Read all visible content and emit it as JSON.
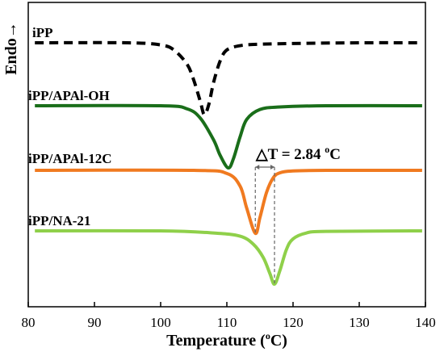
{
  "chart_data": {
    "type": "line",
    "xlabel": "Temperature (°C)",
    "xlabel_main": "Temperature (",
    "xlabel_sup": "o",
    "xlabel_tail": "C)",
    "ylabel": "Endo→",
    "xlim": [
      80,
      140
    ],
    "x_ticks": [
      80,
      90,
      100,
      110,
      120,
      130,
      140
    ],
    "x_tick_labels": [
      "80",
      "90",
      "100",
      "110",
      "120",
      "130",
      "140"
    ],
    "grid": false,
    "series": [
      {
        "name": "iPP",
        "color": "#000000",
        "style": "dashed",
        "peak_x": 106.6,
        "x": [
          81,
          95,
          100,
          102,
          104,
          105,
          106,
          106.6,
          107.3,
          108,
          109,
          110,
          112,
          115,
          120,
          130,
          139.5
        ],
        "y": [
          0,
          0,
          0.03,
          0.1,
          0.3,
          0.52,
          0.82,
          1.0,
          0.85,
          0.55,
          0.25,
          0.1,
          0.04,
          0.02,
          0.01,
          0,
          0
        ]
      },
      {
        "name": "iPP/APAl-OH",
        "color": "#1a6e1a",
        "style": "solid",
        "peak_x": 110.2,
        "x": [
          81,
          100,
          104,
          106,
          108,
          109,
          110.2,
          111,
          112,
          113,
          115,
          118,
          125,
          139.5
        ],
        "y": [
          0,
          0,
          0.05,
          0.2,
          0.55,
          0.8,
          1.0,
          0.85,
          0.5,
          0.22,
          0.06,
          0.02,
          0,
          0
        ]
      },
      {
        "name": "iPP/APAl-12C",
        "color": "#f07a20",
        "style": "solid",
        "peak_x": 114.3,
        "x": [
          81,
          105,
          110,
          112,
          113,
          114.3,
          115,
          116,
          117,
          118,
          120,
          125,
          139.5
        ],
        "y": [
          0,
          0,
          0.05,
          0.25,
          0.6,
          1.0,
          0.75,
          0.35,
          0.12,
          0.04,
          0.01,
          0,
          0
        ]
      },
      {
        "name": "iPP/NA-21",
        "color": "#8fd04a",
        "style": "solid",
        "peak_x": 117.2,
        "x": [
          81,
          100,
          108,
          112,
          114,
          115.5,
          116.5,
          117.2,
          118,
          119,
          120,
          122,
          125,
          139.5
        ],
        "y": [
          0,
          0,
          0.04,
          0.1,
          0.25,
          0.5,
          0.8,
          1.0,
          0.75,
          0.35,
          0.15,
          0.04,
          0.01,
          0
        ]
      }
    ],
    "annotation": {
      "text": "△T = 2.84 ",
      "sup": "o",
      "tail": "C",
      "from_x": 114.3,
      "to_x": 117.2
    }
  }
}
